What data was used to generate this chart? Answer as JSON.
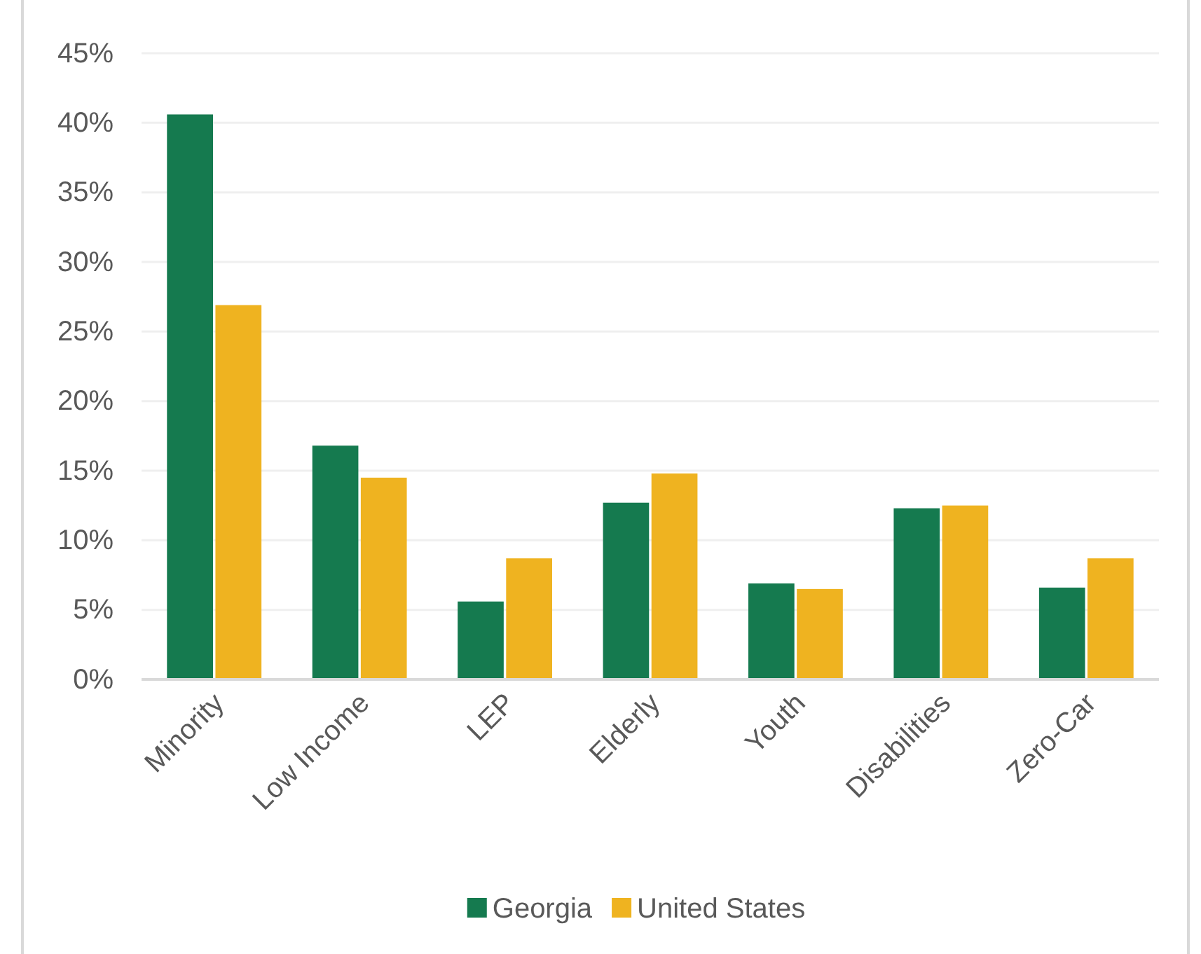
{
  "chart_data": {
    "type": "bar",
    "categories": [
      "Minority",
      "Low Income",
      "LEP",
      "Elderly",
      "Youth",
      "Disabilities",
      "Zero-Car"
    ],
    "series": [
      {
        "name": "Georgia",
        "color": "#157a4f",
        "values": [
          40.6,
          16.8,
          5.6,
          12.7,
          6.9,
          12.3,
          6.6
        ]
      },
      {
        "name": "United States",
        "color": "#efb320",
        "values": [
          26.9,
          14.5,
          8.7,
          14.8,
          6.5,
          12.5,
          8.7
        ]
      }
    ],
    "ylim": [
      0,
      45
    ],
    "yticks": [
      {
        "value": 0,
        "label": "0%"
      },
      {
        "value": 5,
        "label": "5%"
      },
      {
        "value": 10,
        "label": "10%"
      },
      {
        "value": 15,
        "label": "15%"
      },
      {
        "value": 20,
        "label": "20%"
      },
      {
        "value": 25,
        "label": "25%"
      },
      {
        "value": 30,
        "label": "30%"
      },
      {
        "value": 35,
        "label": "35%"
      },
      {
        "value": 40,
        "label": "40%"
      },
      {
        "value": 45,
        "label": "45%"
      }
    ],
    "grid": "y",
    "legend": "bottom"
  }
}
